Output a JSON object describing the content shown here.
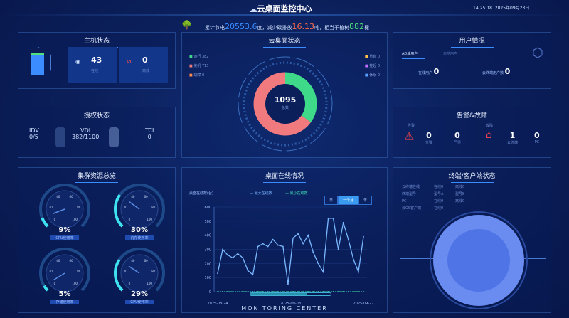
{
  "header": {
    "title": "云桌面监控中心",
    "time": "14:25:18",
    "date": "2025年09月23日"
  },
  "banner": {
    "prefix": "累计节电",
    "power": "20553.6",
    "power_unit": "度，减少碳排放",
    "carbon": "16.13",
    "carbon_unit": "吨，相当于植树",
    "trees": "882",
    "trees_unit": "棵"
  },
  "host": {
    "title": "主机状态",
    "online": "43",
    "online_label": "在线",
    "offline": "0",
    "offline_label": "离线"
  },
  "license": {
    "title": "授权状态",
    "items": [
      {
        "name": "IDV",
        "value": "0/5"
      },
      {
        "name": "VDI",
        "value": "382/1100"
      },
      {
        "name": "TCI",
        "value": "0"
      }
    ]
  },
  "desktop": {
    "title": "云桌面状态",
    "total": "1095",
    "total_label": "总数",
    "left_legend": [
      {
        "label": "运行",
        "value": "382"
      },
      {
        "label": "关机",
        "value": "713"
      },
      {
        "label": "故障",
        "value": "0"
      }
    ],
    "right_legend": [
      {
        "label": "重启",
        "value": "0"
      },
      {
        "label": "挂起",
        "value": "0"
      },
      {
        "label": "休眠",
        "value": "0"
      }
    ],
    "colors": {
      "running": "#3fd98a",
      "off": "#f07a7e"
    }
  },
  "users": {
    "title": "用户情况",
    "tabs": [
      "AD域用户",
      "本地用户"
    ],
    "online_label": "在线用户",
    "online": "0",
    "terminal_label": "云终端用户数",
    "terminal": "0"
  },
  "alarm": {
    "title": "告警&故障",
    "alarm_label": "告警",
    "fault_label": "故障",
    "items": [
      {
        "value": "0",
        "label": "告警"
      },
      {
        "value": "0",
        "label": "严重"
      },
      {
        "value": "1",
        "label": "云终端"
      },
      {
        "value": "0",
        "label": "PC"
      }
    ]
  },
  "cluster": {
    "title": "集群资源总览",
    "gauges": [
      {
        "value": 9,
        "text": "9%",
        "label": "CPU使用率"
      },
      {
        "value": 30,
        "text": "30%",
        "label": "内存使用率"
      },
      {
        "value": 5,
        "text": "5%",
        "label": "存储使用率"
      },
      {
        "value": 29,
        "text": "29%",
        "label": "GPU使用率"
      }
    ],
    "ticks": [
      "0",
      "20",
      "40",
      "60",
      "80",
      "100"
    ]
  },
  "terminal": {
    "title": "终端/客户端状态",
    "rows": [
      {
        "label": "云终端在线",
        "a": "在线0",
        "b": "离线0"
      },
      {
        "label": "终端型号",
        "a": "型号A",
        "b": "型号B"
      },
      {
        "label": "PC",
        "a": "在线0",
        "b": "离线0"
      },
      {
        "label": "云OS客户端",
        "a": "在线0",
        "b": ""
      }
    ]
  },
  "chart_data": {
    "type": "line",
    "title": "桌面在线情况",
    "ylabel": "桌面在线数(台)",
    "legend": [
      "最大在线数",
      "最小在线数"
    ],
    "ranges": [
      "日",
      "一个月",
      "年"
    ],
    "active_range": "一个月",
    "ylim": [
      0,
      600
    ],
    "yticks": [
      0,
      100,
      200,
      300,
      400,
      500,
      600
    ],
    "xtick_labels": [
      "2025-08-24",
      "2025-09-08",
      "2025-09-22"
    ],
    "series": [
      {
        "name": "最大在线数",
        "color": "#7ab8ff",
        "values": [
          130,
          300,
          260,
          240,
          270,
          240,
          150,
          120,
          320,
          340,
          320,
          370,
          330,
          320,
          50,
          380,
          410,
          340,
          400,
          280,
          200,
          140,
          520,
          520,
          300,
          490,
          370,
          230,
          140,
          390
        ]
      },
      {
        "name": "最小在线数",
        "color": "#3fd9b0",
        "values": [
          0,
          0,
          0,
          0,
          0,
          0,
          0,
          0,
          0,
          0,
          0,
          0,
          0,
          0,
          0,
          0,
          0,
          0,
          0,
          0,
          0,
          0,
          0,
          0,
          0,
          0,
          0,
          0,
          0,
          0
        ]
      }
    ]
  },
  "footer": {
    "text": "MONITORING CENTER"
  }
}
